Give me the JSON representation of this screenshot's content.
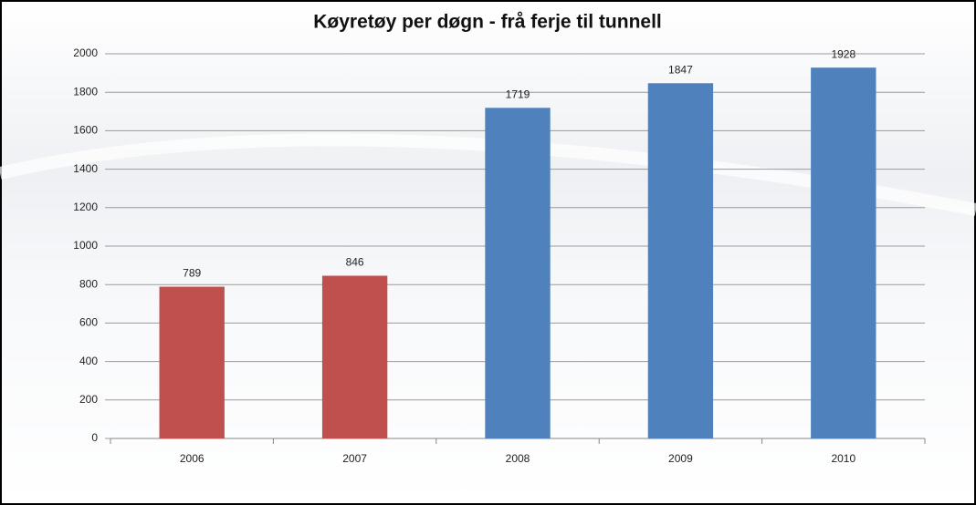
{
  "chart_data": {
    "type": "bar",
    "title": "Køyretøy per døgn - frå ferje til tunnell",
    "categories": [
      "2006",
      "2007",
      "2008",
      "2009",
      "2010"
    ],
    "values": [
      789,
      846,
      1719,
      1847,
      1928
    ],
    "colors": [
      "#c0504d",
      "#c0504d",
      "#4f81bd",
      "#4f81bd",
      "#4f81bd"
    ],
    "ylim": [
      0,
      2000
    ],
    "yticks": [
      0,
      200,
      400,
      600,
      800,
      1000,
      1200,
      1400,
      1600,
      1800,
      2000
    ],
    "grid": true,
    "data_labels": true
  }
}
